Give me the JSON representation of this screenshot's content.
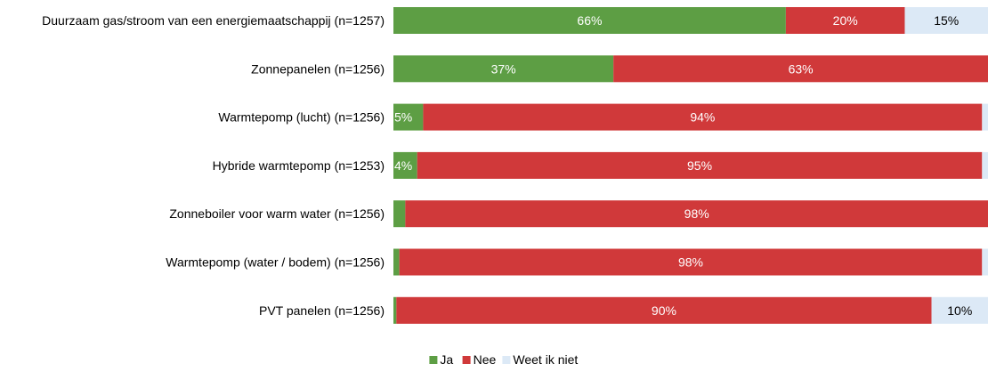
{
  "chart_data": {
    "type": "bar",
    "orientation": "horizontal",
    "stacked": true,
    "categories": [
      "Duurzaam gas/stroom van een energiemaatschappij (n=1257)",
      "Zonnepanelen (n=1256)",
      "Warmtepomp (lucht) (n=1256)",
      "Hybride warmtepomp (n=1253)",
      "Zonneboiler voor warm water (n=1256)",
      "Warmtepomp (water / bodem) (n=1256)",
      "PVT panelen (n=1256)"
    ],
    "series": [
      {
        "name": "Ja",
        "color": "#5d9e44",
        "values": [
          66,
          37,
          5,
          4,
          2,
          1,
          0.5
        ],
        "labels": [
          "66%",
          "37%",
          "5%",
          "4%",
          "",
          "",
          ""
        ]
      },
      {
        "name": "Nee",
        "color": "#d0393a",
        "values": [
          20,
          63,
          94,
          95,
          98,
          98,
          90
        ],
        "labels": [
          "20%",
          "63%",
          "94%",
          "95%",
          "98%",
          "98%",
          "90%"
        ]
      },
      {
        "name": "Weet ik niet",
        "color": "#dce9f6",
        "values": [
          15,
          0,
          1,
          1,
          0,
          1,
          10
        ],
        "labels": [
          "15%",
          "",
          "",
          "",
          "",
          "",
          "10%"
        ]
      }
    ],
    "xlim": [
      0,
      100
    ],
    "grid": false,
    "legend_position": "bottom-center"
  }
}
